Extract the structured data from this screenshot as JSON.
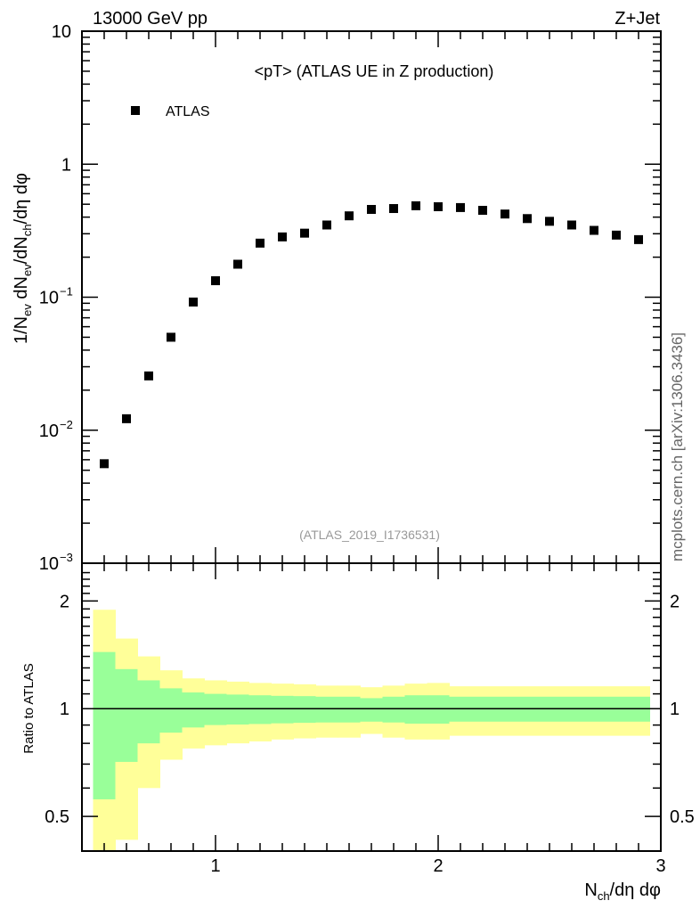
{
  "header": {
    "left": "13000 GeV pp",
    "right": "Z+Jet"
  },
  "side_label": "mcplots.cern.ch [arXiv:1306.3436]",
  "chart_data": [
    {
      "type": "scatter",
      "title": "<pT> (ATLAS UE in Z production)",
      "analysis_label": "(ATLAS_2019_I1736531)",
      "ylabel": {
        "base": "1/N",
        "sub1": "ev",
        "mid": " dN",
        "sub2": "ev",
        "mid2": "/dN",
        "sub3": "ch",
        "end": "/dη dφ"
      },
      "yscale": "log",
      "ylim": [
        0.001,
        10
      ],
      "ytick_labels": {
        "10": "10",
        "1": "1",
        "0.1": "10",
        "0.01": "10",
        "0.001": "10"
      },
      "ytick_exps": {
        "0.1": "−1",
        "0.01": "−2",
        "0.001": "−3"
      },
      "xlim": [
        0.4,
        3.0
      ],
      "legend": {
        "entries": [
          "ATLAS"
        ],
        "placement": "top-left"
      },
      "series": [
        {
          "name": "ATLAS",
          "color": "#000000",
          "x": [
            0.5,
            0.6,
            0.7,
            0.8,
            0.9,
            1.0,
            1.1,
            1.2,
            1.3,
            1.4,
            1.5,
            1.6,
            1.7,
            1.8,
            1.9,
            2.0,
            2.1,
            2.2,
            2.3,
            2.4,
            2.5,
            2.6,
            2.7,
            2.8,
            2.9
          ],
          "y": [
            0.0056,
            0.0122,
            0.0256,
            0.05,
            0.092,
            0.133,
            0.177,
            0.255,
            0.284,
            0.303,
            0.349,
            0.409,
            0.457,
            0.464,
            0.487,
            0.479,
            0.472,
            0.45,
            0.422,
            0.39,
            0.372,
            0.349,
            0.318,
            0.293,
            0.271
          ]
        }
      ]
    },
    {
      "type": "area",
      "ylabel": "Ratio to ATLAS",
      "xlabel": {
        "base": "N",
        "sub": "ch",
        "end": "/dη dφ"
      },
      "yscale": "log",
      "ylim": [
        0.4,
        2.55
      ],
      "xlim": [
        0.4,
        3.0
      ],
      "xtick_labels": [
        "1",
        "2",
        "3"
      ],
      "ytick_labels": [
        "0.5",
        "1",
        "2"
      ],
      "colors": {
        "inner": "#99ff99",
        "outer": "#ffff99"
      },
      "bins": {
        "edges": [
          0.45,
          0.55,
          0.65,
          0.75,
          0.85,
          0.95,
          1.05,
          1.15,
          1.25,
          1.35,
          1.45,
          1.55,
          1.65,
          1.75,
          1.85,
          1.95,
          2.05,
          2.95
        ],
        "outer_hi": [
          1.89,
          1.57,
          1.4,
          1.28,
          1.215,
          1.2,
          1.19,
          1.18,
          1.175,
          1.17,
          1.16,
          1.16,
          1.148,
          1.16,
          1.175,
          1.18,
          1.155
        ],
        "inner_hi": [
          1.44,
          1.29,
          1.2,
          1.14,
          1.11,
          1.1,
          1.095,
          1.09,
          1.086,
          1.084,
          1.08,
          1.08,
          1.07,
          1.08,
          1.09,
          1.09,
          1.08
        ],
        "inner_lo": [
          0.558,
          0.71,
          0.8,
          0.857,
          0.886,
          0.9,
          0.903,
          0.906,
          0.91,
          0.913,
          0.915,
          0.915,
          0.92,
          0.915,
          0.908,
          0.908,
          0.92
        ],
        "outer_lo": [
          0.35,
          0.43,
          0.6,
          0.72,
          0.774,
          0.79,
          0.8,
          0.81,
          0.82,
          0.826,
          0.83,
          0.83,
          0.85,
          0.83,
          0.82,
          0.82,
          0.84
        ]
      }
    }
  ]
}
